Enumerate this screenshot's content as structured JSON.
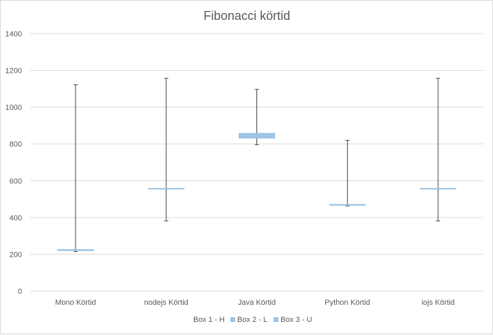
{
  "chart_data": {
    "type": "box",
    "title": "Fibonacci körtid",
    "categories": [
      "Mono Körtid",
      "nodejs Körtid",
      "Java Körtid",
      "Python Körtid",
      "iojs Körtid"
    ],
    "ylim": [
      0,
      1400
    ],
    "yticks": [
      0,
      200,
      400,
      600,
      800,
      1000,
      1200,
      1400
    ],
    "ytick_labels": [
      "0",
      "200",
      "400",
      "600",
      "800",
      "1000",
      "1200",
      "1400"
    ],
    "grid": true,
    "legend_position": "bottom",
    "boxes": [
      {
        "min": 215,
        "q1": 222,
        "median": 224,
        "q3": 228,
        "max": 1122
      },
      {
        "min": 381,
        "q1": 556,
        "median": 558,
        "q3": 560,
        "max": 1157
      },
      {
        "min": 796,
        "q1": 830,
        "median": 844,
        "q3": 860,
        "max": 1097
      },
      {
        "min": 463,
        "q1": 468,
        "median": 470,
        "q3": 473,
        "max": 820
      },
      {
        "min": 381,
        "q1": 556,
        "median": 558,
        "q3": 560,
        "max": 1157
      }
    ],
    "series": [
      {
        "name": "Box 1 - H",
        "color": "#ffffff"
      },
      {
        "name": "Box 2 - L",
        "color": "#9dc3e6"
      },
      {
        "name": "Box 3 - U",
        "color": "#9dc3e6"
      }
    ]
  }
}
